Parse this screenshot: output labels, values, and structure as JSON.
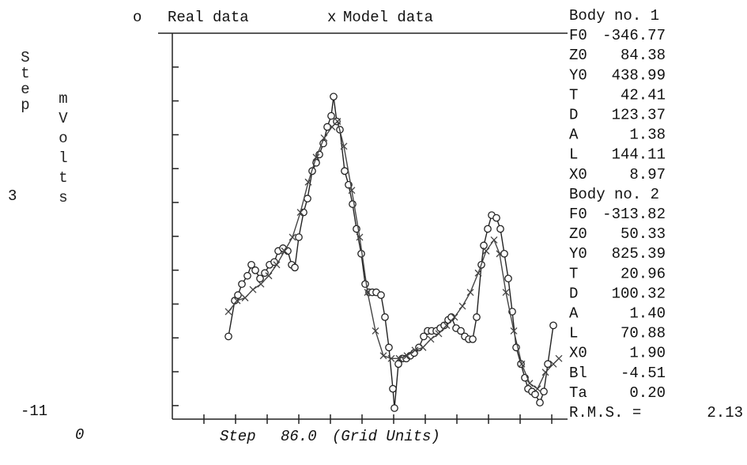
{
  "chart_data": {
    "type": "line",
    "xlim": [
      0,
      100
    ],
    "ylim": [
      -11,
      3
    ],
    "left_label": "Step",
    "y_label": "mVolts",
    "step_label": "Step",
    "step_value": "86.0",
    "unit_label": "(Grid Units)",
    "rms_label": "R.M.S. =",
    "rms_value": "2.13",
    "panel": [
      {
        "text": "Body no. 1"
      },
      {
        "name": "F0",
        "value": "-346.77"
      },
      {
        "name": "Z0",
        "value": "84.38"
      },
      {
        "name": "Y0",
        "value": "438.99"
      },
      {
        "name": "T",
        "value": "42.41"
      },
      {
        "name": "D",
        "value": "123.37"
      },
      {
        "name": "A",
        "value": "1.38"
      },
      {
        "name": "L",
        "value": "144.11"
      },
      {
        "name": "X0",
        "value": "8.97"
      },
      {
        "text": "Body no. 2"
      },
      {
        "name": "F0",
        "value": "-313.82"
      },
      {
        "name": "Z0",
        "value": "50.33"
      },
      {
        "name": "Y0",
        "value": "825.39"
      },
      {
        "name": "T",
        "value": "20.96"
      },
      {
        "name": "D",
        "value": "100.32"
      },
      {
        "name": "A",
        "value": "1.40"
      },
      {
        "name": "L",
        "value": "70.88"
      },
      {
        "name": "X0",
        "value": "1.90"
      },
      {
        "name": "Bl",
        "value": "-4.51"
      },
      {
        "name": "Ta",
        "value": "0.20"
      }
    ],
    "series": [
      {
        "name": "Real data",
        "marker": "o",
        "color": "#222",
        "x": [
          14.2,
          15.8,
          16.6,
          17.6,
          19.0,
          20.0,
          21.0,
          22.2,
          23.4,
          24.6,
          25.8,
          26.8,
          28.0,
          29.2,
          30.2,
          31.0,
          32.0,
          33.2,
          34.2,
          35.4,
          36.4,
          37.2,
          38.2,
          39.2,
          40.2,
          40.8,
          41.6,
          42.4,
          43.6,
          44.6,
          45.6,
          46.6,
          47.8,
          48.8,
          49.8,
          50.6,
          51.6,
          52.8,
          53.8,
          54.8,
          55.8,
          56.2,
          57.2,
          58.2,
          59.2,
          60.2,
          61.2,
          62.4,
          63.6,
          64.6,
          65.6,
          66.8,
          67.8,
          68.8,
          69.8,
          70.6,
          71.8,
          73.0,
          74.0,
          75.0,
          76.0,
          77.0,
          78.2,
          78.8,
          79.8,
          80.8,
          82.0,
          83.0,
          84.0,
          85.0,
          86.0,
          87.0,
          88.2,
          89.2,
          90.0,
          91.0,
          91.8,
          93.0,
          94.0,
          95.0,
          96.4
        ],
        "values": [
          -8.0,
          -6.7,
          -6.5,
          -6.1,
          -5.8,
          -5.4,
          -5.6,
          -5.9,
          -5.7,
          -5.4,
          -5.3,
          -4.9,
          -4.8,
          -4.9,
          -5.4,
          -5.5,
          -4.4,
          -3.5,
          -3.0,
          -2.0,
          -1.7,
          -1.4,
          -1.0,
          -0.4,
          0.0,
          0.7,
          -0.2,
          -0.5,
          -2.0,
          -2.5,
          -3.2,
          -4.1,
          -5.0,
          -6.1,
          -6.4,
          -6.4,
          -6.4,
          -6.5,
          -7.3,
          -8.4,
          -9.9,
          -10.6,
          -9.0,
          -8.8,
          -8.8,
          -8.7,
          -8.6,
          -8.4,
          -8.0,
          -7.8,
          -7.8,
          -7.8,
          -7.7,
          -7.6,
          -7.4,
          -7.3,
          -7.7,
          -7.8,
          -8.0,
          -8.1,
          -8.1,
          -7.3,
          -5.4,
          -4.7,
          -4.1,
          -3.6,
          -3.7,
          -4.1,
          -5.0,
          -5.9,
          -7.1,
          -8.4,
          -9.0,
          -9.5,
          -9.9,
          -10.0,
          -10.1,
          -10.4,
          -10.0,
          -9.0,
          -7.6
        ]
      },
      {
        "name": "Model data",
        "marker": "x",
        "color": "#444",
        "x": [
          14.2,
          16.4,
          18.4,
          20.4,
          22.4,
          24.4,
          26.4,
          28.4,
          30.4,
          32.4,
          34.4,
          36.4,
          38.4,
          40.4,
          41.8,
          43.4,
          45.4,
          47.4,
          49.4,
          51.4,
          53.4,
          55.4,
          57.4,
          59.4,
          61.4,
          63.4,
          65.4,
          67.4,
          69.4,
          71.4,
          73.4,
          75.4,
          77.4,
          79.4,
          81.4,
          82.8,
          84.4,
          86.4,
          88.4,
          90.4,
          92.4,
          94.4,
          96.4,
          97.8
        ],
        "values": [
          -7.1,
          -6.7,
          -6.6,
          -6.3,
          -6.1,
          -5.8,
          -5.4,
          -4.9,
          -4.4,
          -3.5,
          -2.4,
          -1.5,
          -0.8,
          -0.4,
          -0.2,
          -1.1,
          -2.7,
          -4.4,
          -6.4,
          -7.8,
          -8.7,
          -8.8,
          -8.8,
          -8.7,
          -8.5,
          -8.4,
          -8.1,
          -7.9,
          -7.6,
          -7.3,
          -6.9,
          -6.4,
          -5.7,
          -4.9,
          -4.5,
          -5.0,
          -6.4,
          -7.8,
          -9.0,
          -9.7,
          -9.9,
          -9.3,
          -9.0,
          -8.8
        ]
      }
    ]
  }
}
